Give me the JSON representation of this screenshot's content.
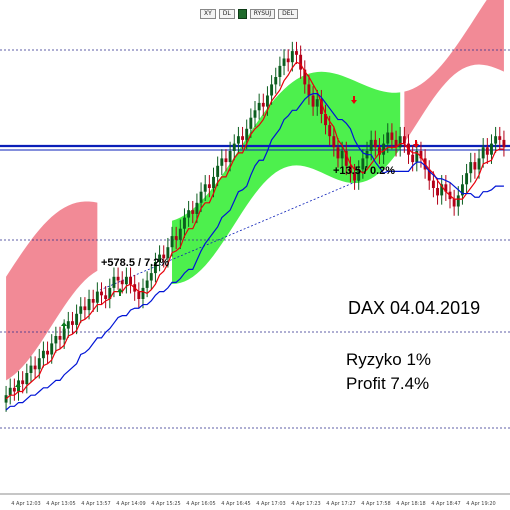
{
  "toolbar": {
    "btn1": "XY",
    "btn2": "DL",
    "btn3": "RYSUJ",
    "btn4": "DEL"
  },
  "annotations": {
    "title": "DAX 04.04.2019",
    "risk": "Ryzyko 1%",
    "profit": "Profit 7.4%",
    "trade1": "+578.5 / 7.2%",
    "trade2": "+13.5 / 0.2%"
  },
  "colors": {
    "bull": "#0b5d1e",
    "bear": "#b30018",
    "tenkan": "#e8000b",
    "kijun": "#0014d6",
    "cloud_bull": "#4df04d",
    "cloud_bear": "#f28a96",
    "level": "#0a1fb8",
    "arrow_up": "#0b7a1c",
    "arrow_down": "#e8000b"
  },
  "chart_data": {
    "type": "candlestick",
    "instrument": "DAX",
    "date": "04.04.2019",
    "x_ticks": [
      "4 Apr 12:03",
      "4 Apr 13:05",
      "4 Apr 13:57",
      "4 Apr 14:09",
      "4 Apr 15:25",
      "4 Apr 16:05",
      "4 Apr 16:45",
      "4 Apr 17:03",
      "4 Apr 17:23",
      "4 Apr 17:27",
      "4 Apr 17:58",
      "4 Apr 18:18",
      "4 Apr 18:47",
      "4 Apr 19:20"
    ],
    "closes": [
      4,
      6,
      5,
      8,
      7,
      10,
      12,
      11,
      14,
      16,
      15,
      18,
      20,
      19,
      22,
      24,
      23,
      26,
      28,
      27,
      30,
      29,
      32,
      31,
      30,
      33,
      36,
      35,
      34,
      36,
      34,
      32,
      30,
      33,
      35,
      37,
      40,
      42,
      41,
      44,
      47,
      46,
      49,
      52,
      54,
      53,
      56,
      59,
      61,
      60,
      63,
      66,
      68,
      67,
      70,
      72,
      74,
      73,
      76,
      79,
      81,
      83,
      82,
      85,
      88,
      90,
      93,
      95,
      94,
      97,
      96,
      92,
      88,
      85,
      82,
      84,
      80,
      77,
      74,
      71,
      68,
      70,
      66,
      64,
      62,
      65,
      68,
      70,
      73,
      71,
      69,
      72,
      75,
      73,
      71,
      74,
      72,
      69,
      67,
      70,
      68,
      65,
      62,
      60,
      58,
      61,
      59,
      57,
      55,
      58,
      61,
      64,
      67,
      65,
      68,
      71,
      69,
      72,
      74,
      73,
      71
    ]
  }
}
